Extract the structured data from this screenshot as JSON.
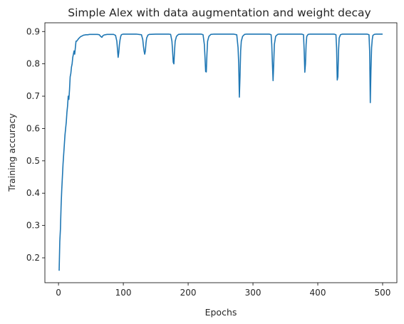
{
  "chart_data": {
    "type": "line",
    "title": "Simple Alex with data augmentation and weight decay",
    "xlabel": "Epochs",
    "ylabel": "Training accuracy",
    "xlim": [
      -21,
      522
    ],
    "ylim": [
      0.123,
      0.927
    ],
    "xticks": [
      0,
      100,
      200,
      300,
      400,
      500
    ],
    "xtick_labels": [
      "0",
      "100",
      "200",
      "300",
      "400",
      "500"
    ],
    "yticks": [
      0.2,
      0.3,
      0.4,
      0.5,
      0.6,
      0.7,
      0.8,
      0.9
    ],
    "ytick_labels": [
      "0.2",
      "0.3",
      "0.4",
      "0.5",
      "0.6",
      "0.7",
      "0.8",
      "0.9"
    ],
    "grid": false,
    "line_color": "#1f77b4",
    "series": [
      {
        "x": [
          1,
          2,
          3,
          4,
          5,
          6,
          7,
          8,
          9,
          10,
          11,
          12,
          13,
          14,
          15,
          16,
          17,
          18,
          19,
          20,
          21,
          22,
          23,
          24,
          25,
          26,
          27,
          28,
          29,
          30,
          31,
          32,
          33,
          34,
          35,
          36,
          37,
          38,
          39,
          40,
          42,
          45,
          48,
          52,
          56,
          60,
          63,
          65,
          67,
          68,
          70,
          72,
          75,
          80,
          85,
          88,
          90,
          91,
          92,
          93,
          94,
          95,
          96,
          97,
          98,
          100,
          105,
          110,
          120,
          128,
          130,
          131,
          132,
          133,
          134,
          135,
          136,
          138,
          140,
          150,
          160,
          170,
          173,
          175,
          176,
          177,
          178,
          179,
          180,
          182,
          185,
          190,
          200,
          210,
          220,
          223,
          225,
          226,
          227,
          228,
          229,
          230,
          232,
          235,
          240,
          250,
          260,
          270,
          275,
          277,
          278,
          279,
          280,
          281,
          282,
          284,
          287,
          290,
          300,
          310,
          320,
          325,
          328,
          329,
          330,
          331,
          332,
          333,
          335,
          338,
          340,
          350,
          360,
          370,
          375,
          378,
          379,
          380,
          381,
          382,
          383,
          385,
          388,
          390,
          400,
          410,
          420,
          425,
          428,
          429,
          430,
          431,
          432,
          433,
          435,
          438,
          440,
          450,
          460,
          470,
          476,
          479,
          480,
          481,
          482,
          483,
          484,
          485,
          487,
          490,
          495,
          500
        ],
        "y": [
          0.16,
          0.25,
          0.29,
          0.36,
          0.41,
          0.45,
          0.49,
          0.52,
          0.55,
          0.58,
          0.6,
          0.62,
          0.65,
          0.67,
          0.7,
          0.69,
          0.72,
          0.76,
          0.77,
          0.79,
          0.8,
          0.82,
          0.83,
          0.84,
          0.83,
          0.85,
          0.87,
          0.87,
          0.873,
          0.875,
          0.878,
          0.88,
          0.882,
          0.884,
          0.885,
          0.886,
          0.887,
          0.888,
          0.889,
          0.889,
          0.89,
          0.89,
          0.891,
          0.891,
          0.891,
          0.891,
          0.89,
          0.885,
          0.882,
          0.886,
          0.889,
          0.89,
          0.891,
          0.891,
          0.891,
          0.888,
          0.87,
          0.845,
          0.82,
          0.835,
          0.86,
          0.875,
          0.885,
          0.89,
          0.891,
          0.892,
          0.892,
          0.892,
          0.892,
          0.89,
          0.875,
          0.855,
          0.84,
          0.83,
          0.84,
          0.865,
          0.88,
          0.889,
          0.891,
          0.892,
          0.892,
          0.892,
          0.891,
          0.87,
          0.84,
          0.805,
          0.8,
          0.84,
          0.87,
          0.885,
          0.891,
          0.892,
          0.892,
          0.892,
          0.892,
          0.89,
          0.86,
          0.82,
          0.776,
          0.775,
          0.83,
          0.87,
          0.885,
          0.891,
          0.892,
          0.892,
          0.892,
          0.892,
          0.89,
          0.85,
          0.8,
          0.697,
          0.76,
          0.84,
          0.87,
          0.885,
          0.891,
          0.892,
          0.892,
          0.892,
          0.892,
          0.892,
          0.89,
          0.86,
          0.8,
          0.748,
          0.8,
          0.86,
          0.885,
          0.891,
          0.892,
          0.892,
          0.892,
          0.892,
          0.892,
          0.89,
          0.84,
          0.774,
          0.8,
          0.86,
          0.885,
          0.891,
          0.892,
          0.892,
          0.892,
          0.892,
          0.892,
          0.892,
          0.89,
          0.85,
          0.75,
          0.76,
          0.84,
          0.88,
          0.89,
          0.892,
          0.892,
          0.892,
          0.892,
          0.892,
          0.892,
          0.89,
          0.84,
          0.68,
          0.78,
          0.85,
          0.875,
          0.888,
          0.891,
          0.892,
          0.892,
          0.892
        ]
      }
    ]
  }
}
